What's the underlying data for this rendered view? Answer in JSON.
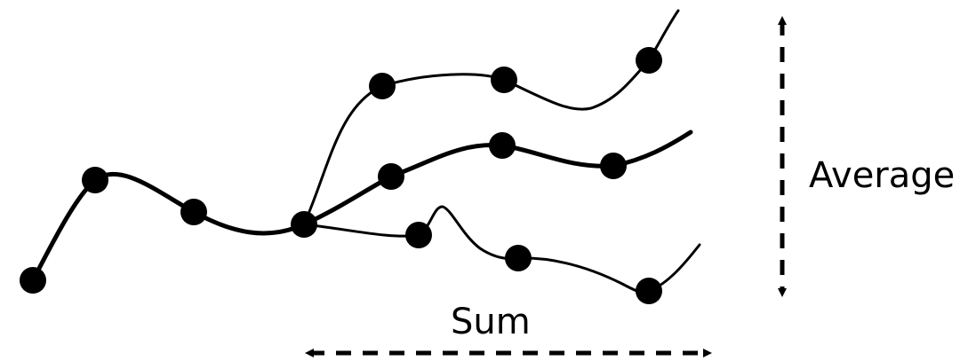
{
  "labels": {
    "horizontal_axis": "Sum",
    "vertical_axis": "Average"
  },
  "style": {
    "stroke_color": "#000000",
    "node_color": "#000000",
    "background": "#ffffff"
  },
  "structure": {
    "trunk_nodes": 4,
    "branches": [
      {
        "name": "upper",
        "nodes": 3
      },
      {
        "name": "middle",
        "nodes": 3
      },
      {
        "name": "lower",
        "nodes": 3
      }
    ],
    "arrow_style": "dashed-double-headed"
  }
}
